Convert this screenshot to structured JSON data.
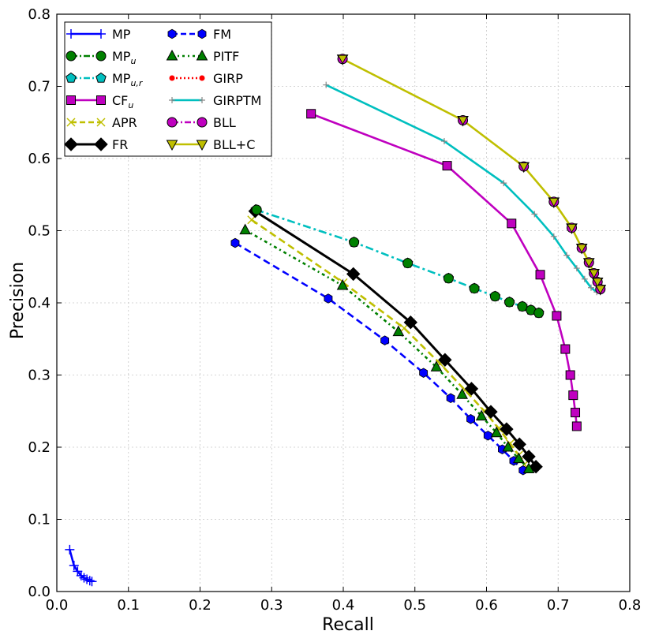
{
  "chart_data": {
    "type": "line",
    "title": "",
    "xlabel": "Recall",
    "ylabel": "Precision",
    "xlim": [
      0.0,
      0.8
    ],
    "ylim": [
      0.0,
      0.8
    ],
    "xticks": [
      "0.0",
      "0.1",
      "0.2",
      "0.3",
      "0.4",
      "0.5",
      "0.6",
      "0.7",
      "0.8"
    ],
    "yticks": [
      "0.0",
      "0.1",
      "0.2",
      "0.3",
      "0.4",
      "0.5",
      "0.6",
      "0.7",
      "0.8"
    ],
    "grid": true,
    "legend_position": "top-left",
    "series": [
      {
        "name": "MP",
        "sub": "",
        "color": "#0000ff",
        "dash": "solid",
        "marker": "plus",
        "x": [
          0.018,
          0.024,
          0.029,
          0.034,
          0.038,
          0.042,
          0.046,
          0.049
        ],
        "y": [
          0.058,
          0.036,
          0.028,
          0.022,
          0.019,
          0.017,
          0.015,
          0.014
        ]
      },
      {
        "name": "MP",
        "sub": "u",
        "color": "#008000",
        "dash": "dashdot",
        "marker": "circle",
        "x": [],
        "y": []
      },
      {
        "name": "MP",
        "sub": "u,r",
        "color": "#00bfbf",
        "dash": "dashdot",
        "marker": "pentagon",
        "x": [
          0.278,
          0.415,
          0.49,
          0.547,
          0.583,
          0.612,
          0.632,
          0.65,
          0.662,
          0.673
        ],
        "y": [
          0.529,
          0.484,
          0.455,
          0.434,
          0.42,
          0.409,
          0.401,
          0.395,
          0.39,
          0.386
        ]
      },
      {
        "name": "CF",
        "sub": "u",
        "color": "#bf00bf",
        "dash": "solid",
        "marker": "square",
        "x": [
          0.355,
          0.545,
          0.635,
          0.675,
          0.698,
          0.71,
          0.717,
          0.721,
          0.724,
          0.726
        ],
        "y": [
          0.662,
          0.59,
          0.51,
          0.439,
          0.382,
          0.336,
          0.3,
          0.272,
          0.248,
          0.229
        ]
      },
      {
        "name": "APR",
        "sub": "",
        "color": "#bfbf00",
        "dash": "dashed",
        "marker": "x",
        "x": [
          0.272,
          0.4,
          0.485,
          0.535,
          0.57,
          0.597,
          0.617,
          0.633,
          0.645,
          0.653
        ],
        "y": [
          0.515,
          0.428,
          0.365,
          0.316,
          0.279,
          0.25,
          0.226,
          0.205,
          0.189,
          0.176
        ]
      },
      {
        "name": "FR",
        "sub": "",
        "color": "#000000",
        "dash": "solid",
        "marker": "diamond",
        "x": [
          0.277,
          0.414,
          0.494,
          0.542,
          0.579,
          0.606,
          0.628,
          0.646,
          0.659,
          0.669
        ],
        "y": [
          0.527,
          0.44,
          0.373,
          0.321,
          0.281,
          0.249,
          0.225,
          0.204,
          0.187,
          0.173
        ]
      },
      {
        "name": "FM",
        "sub": "",
        "color": "#0000ff",
        "dash": "dashed",
        "marker": "hexagon",
        "x": [
          0.249,
          0.379,
          0.458,
          0.512,
          0.55,
          0.578,
          0.602,
          0.622,
          0.638,
          0.651
        ],
        "y": [
          0.483,
          0.406,
          0.348,
          0.303,
          0.268,
          0.239,
          0.216,
          0.197,
          0.181,
          0.168
        ]
      },
      {
        "name": "PITF",
        "sub": "",
        "color": "#008000",
        "dash": "dotdash",
        "marker": "triangle",
        "x": [
          0.263,
          0.399,
          0.477,
          0.53,
          0.566,
          0.593,
          0.614,
          0.63,
          0.645,
          0.659
        ],
        "y": [
          0.501,
          0.424,
          0.36,
          0.311,
          0.273,
          0.243,
          0.22,
          0.2,
          0.184,
          0.17
        ]
      },
      {
        "name": "GIRP",
        "sub": "",
        "color": "#ff0000",
        "dash": "dotted",
        "marker": "dot",
        "x": [],
        "y": []
      },
      {
        "name": "GIRPTM",
        "sub": "",
        "color": "#00bfbf",
        "dash": "solid",
        "marker": "plus-small",
        "x": [
          0.376,
          0.541,
          0.624,
          0.667,
          0.694,
          0.712,
          0.726,
          0.737,
          0.746,
          0.754
        ],
        "y": [
          0.702,
          0.624,
          0.566,
          0.523,
          0.492,
          0.466,
          0.448,
          0.433,
          0.421,
          0.415
        ]
      },
      {
        "name": "BLL",
        "sub": "",
        "color": "#bf00bf",
        "dash": "dashdot",
        "marker": "circle",
        "x": [],
        "y": []
      },
      {
        "name": "BLL+C",
        "sub": "",
        "color": "#bfbf00",
        "dash": "solid",
        "marker": "tri-down",
        "x": [
          0.399,
          0.567,
          0.652,
          0.694,
          0.719,
          0.733,
          0.743,
          0.75,
          0.755,
          0.759
        ],
        "y": [
          0.738,
          0.653,
          0.589,
          0.54,
          0.504,
          0.476,
          0.456,
          0.441,
          0.429,
          0.419
        ]
      }
    ],
    "extra_markers": [
      {
        "series": "MP_u",
        "marker": "circle",
        "color": "#008000",
        "x": [
          0.279,
          0.415,
          0.49,
          0.547,
          0.583,
          0.612,
          0.632,
          0.65,
          0.662,
          0.673
        ],
        "y": [
          0.529,
          0.484,
          0.455,
          0.434,
          0.42,
          0.409,
          0.401,
          0.395,
          0.39,
          0.386
        ]
      },
      {
        "series": "BLL",
        "marker": "circle",
        "color": "#bf00bf",
        "x": [
          0.399,
          0.567,
          0.652,
          0.694,
          0.719,
          0.733,
          0.743,
          0.75,
          0.755,
          0.759
        ],
        "y": [
          0.738,
          0.653,
          0.589,
          0.54,
          0.504,
          0.476,
          0.456,
          0.441,
          0.429,
          0.419
        ]
      }
    ]
  }
}
